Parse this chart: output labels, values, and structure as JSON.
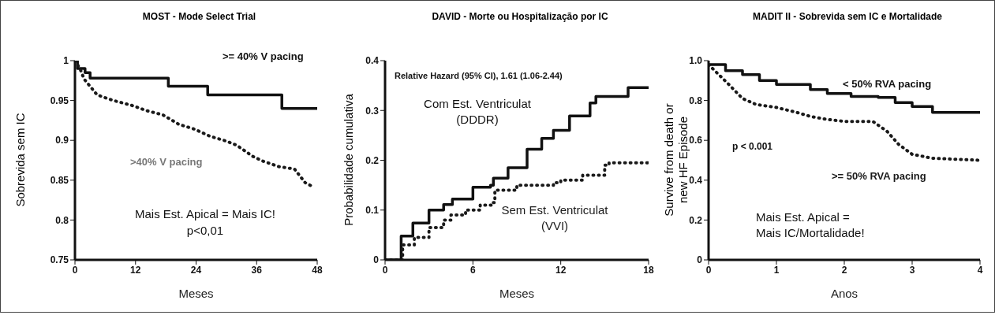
{
  "chart_data": [
    {
      "type": "step",
      "title": "MOST - Mode Select Trial",
      "xlabel": "Meses",
      "ylabel": "Sobrevida sem IC",
      "xlim": [
        0,
        48
      ],
      "ylim": [
        0.75,
        1
      ],
      "xticks": [
        0,
        12,
        24,
        36,
        48
      ],
      "yticks": [
        0.75,
        0.8,
        0.85,
        0.9,
        0.95,
        1
      ],
      "marker": "none",
      "series": [
        {
          "name": ">= 40% V pacing",
          "color": "#111111",
          "line_style": "solid",
          "x": [
            0,
            0.5,
            1,
            2,
            3,
            18.5,
            26.3,
            41,
            48
          ],
          "values": [
            1,
            0.99,
            0.99,
            0.985,
            0.978,
            0.968,
            0.957,
            0.94,
            0.94
          ]
        },
        {
          "name": ">40% V pacing",
          "color": "#1a1a1a",
          "line_style": "dotted",
          "type": "line",
          "x": [
            0,
            1,
            1.8,
            4.4,
            7.6,
            11.2,
            14.3,
            17.4,
            20.6,
            23.7,
            26.8,
            30,
            32,
            35.2,
            37.2,
            40.4,
            43.5,
            45.6,
            47.4
          ],
          "values": [
            1,
            0.99,
            0.977,
            0.957,
            0.95,
            0.944,
            0.937,
            0.932,
            0.92,
            0.914,
            0.905,
            0.899,
            0.894,
            0.88,
            0.874,
            0.867,
            0.864,
            0.847,
            0.841
          ]
        }
      ],
      "annotations": [
        "Mais Est. Apical = Mais IC!",
        "p<0,01"
      ]
    },
    {
      "type": "step",
      "title": "DAVID - Morte ou Hospitalização por IC",
      "xlabel": "Meses",
      "ylabel": "Probabilidade cumulativa",
      "xlim": [
        0,
        18
      ],
      "ylim": [
        0,
        0.4
      ],
      "xticks": [
        0,
        6,
        12,
        18
      ],
      "yticks": [
        0,
        0.1,
        0.2,
        0.3,
        0.4
      ],
      "marker": "none",
      "series": [
        {
          "name": "Com Est. Ventriculat (DDDR)",
          "color": "#111111",
          "line_style": "solid",
          "x": [
            0,
            1.1,
            1.9,
            3,
            4,
            4.6,
            6,
            7.2,
            7.4,
            8.4,
            9.4,
            9.7,
            10.7,
            11.5,
            12.6,
            14,
            14.4,
            16.6,
            18
          ],
          "values": [
            0,
            0.048,
            0.074,
            0.1,
            0.111,
            0.122,
            0.146,
            0.15,
            0.164,
            0.185,
            0.185,
            0.222,
            0.244,
            0.26,
            0.289,
            0.315,
            0.328,
            0.346,
            0.346
          ]
        },
        {
          "name": "Sem Est. Ventriculat (VVI)",
          "color": "#1a1a1a",
          "line_style": "dotted",
          "x": [
            0,
            1.2,
            2,
            3,
            4,
            4.5,
            5.5,
            6.5,
            7.3,
            7.5,
            9,
            11.5,
            12,
            13.5,
            15,
            15.3,
            18
          ],
          "values": [
            0,
            0.03,
            0.045,
            0.065,
            0.08,
            0.09,
            0.1,
            0.11,
            0.115,
            0.14,
            0.15,
            0.155,
            0.16,
            0.17,
            0.19,
            0.195,
            0.195
          ]
        }
      ],
      "annotations": [
        "Relative Hazard (95% CI), 1.61 (1.06-2.44)"
      ]
    },
    {
      "type": "step",
      "title": "MADIT II - Sobrevida sem IC e Mortalidade",
      "xlabel": "Anos",
      "ylabel": "Survive from death or new HF Episode",
      "xlim": [
        0,
        4
      ],
      "ylim": [
        0,
        1
      ],
      "xticks": [
        0,
        1,
        2,
        3,
        4
      ],
      "yticks": [
        0,
        {
          "value": 0.2,
          "label": "0.2"
        },
        {
          "value": 0.4,
          "label": "0.4"
        },
        {
          "value": 0.6,
          "label": "0.6"
        },
        {
          "value": 0.8,
          "label": "0.8"
        },
        {
          "value": 1,
          "label": "1.0"
        }
      ],
      "marker": "none",
      "series": [
        {
          "name": "< 50% RVA pacing",
          "color": "#111111",
          "line_style": "solid",
          "x": [
            0,
            0.25,
            0.5,
            0.75,
            1,
            1.5,
            1.75,
            2.1,
            2.5,
            2.75,
            3,
            3.3,
            4
          ],
          "values": [
            0.98,
            0.95,
            0.93,
            0.9,
            0.88,
            0.855,
            0.835,
            0.82,
            0.815,
            0.79,
            0.77,
            0.74,
            0.74
          ]
        },
        {
          "name": ">= 50% RVA pacing",
          "color": "#1a1a1a",
          "line_style": "dotted",
          "type": "line",
          "x": [
            0,
            0.15,
            0.3,
            0.5,
            0.7,
            1,
            1.3,
            1.5,
            1.75,
            2,
            2.42,
            2.63,
            2.8,
            3,
            3.3,
            4
          ],
          "values": [
            0.98,
            0.93,
            0.88,
            0.81,
            0.78,
            0.765,
            0.74,
            0.72,
            0.705,
            0.695,
            0.695,
            0.645,
            0.58,
            0.53,
            0.51,
            0.5
          ]
        }
      ],
      "annotations": [
        "p < 0.001",
        "Mais Est. Apical = Mais IC/Mortalidade!"
      ]
    }
  ]
}
